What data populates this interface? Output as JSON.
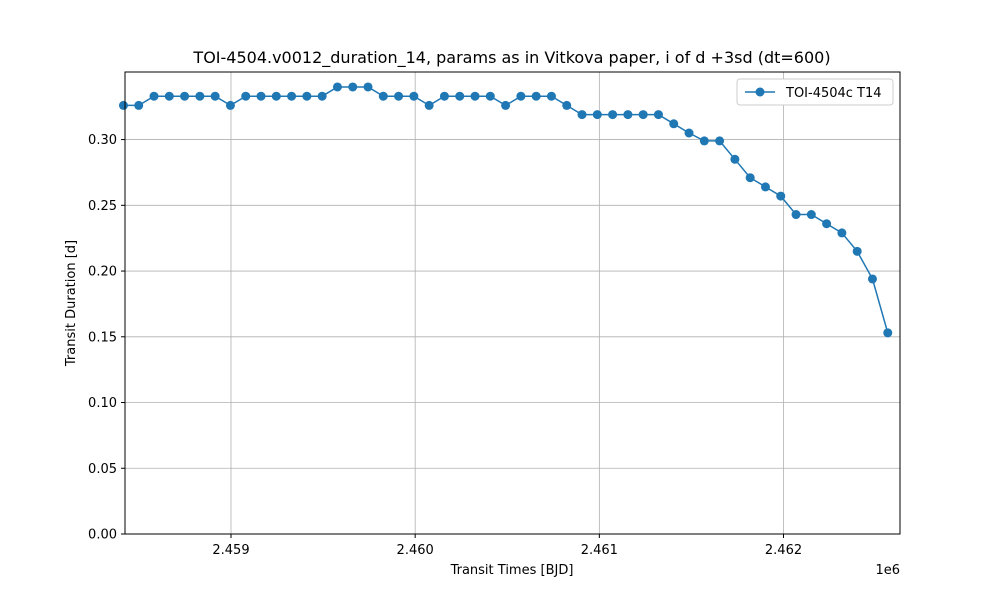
{
  "chart_data": {
    "type": "line",
    "title": "TOI-4504.v0012_duration_14, params as in Vitkova paper, i of d +3sd (dt=600)",
    "xlabel": "Transit Times [BJD]",
    "ylabel": "Transit Duration [d]",
    "x_offset_label": "1e6",
    "xlim": [
      2458424.5,
      2462632.5
    ],
    "ylim": [
      0.0,
      0.3514
    ],
    "xticks": [
      2459000,
      2460000,
      2461000,
      2462000
    ],
    "xtick_labels": [
      "2.459",
      "2.460",
      "2.461",
      "2.462"
    ],
    "yticks": [
      0.0,
      0.05,
      0.1,
      0.15,
      0.2,
      0.25,
      0.3
    ],
    "ytick_labels": [
      "0.00",
      "0.05",
      "0.10",
      "0.15",
      "0.20",
      "0.25",
      "0.30"
    ],
    "grid": true,
    "legend_position": "top-right",
    "colors": {
      "series": "#1f77b4",
      "grid": "#b0b0b0",
      "axes": "#000000"
    },
    "series": [
      {
        "name": "TOI-4504c T14",
        "marker": "circle",
        "x": [
          2458416,
          2458499,
          2458582,
          2458665,
          2458748,
          2458831,
          2458914,
          2458997,
          2459080,
          2459163,
          2459246,
          2459329,
          2459412,
          2459495,
          2459578,
          2459661,
          2459744,
          2459827,
          2459910,
          2459993,
          2460076,
          2460159,
          2460242,
          2460325,
          2460408,
          2460491,
          2460574,
          2460657,
          2460740,
          2460823,
          2460906,
          2460989,
          2461072,
          2461155,
          2461238,
          2461321,
          2461404,
          2461487,
          2461570,
          2461653,
          2461736,
          2461819,
          2461902,
          2461985,
          2462068,
          2462151,
          2462234,
          2462317,
          2462400,
          2462483,
          2462566
        ],
        "y": [
          0.326,
          0.326,
          0.333,
          0.333,
          0.333,
          0.333,
          0.333,
          0.326,
          0.333,
          0.333,
          0.333,
          0.333,
          0.333,
          0.333,
          0.34,
          0.34,
          0.34,
          0.333,
          0.333,
          0.333,
          0.326,
          0.333,
          0.333,
          0.333,
          0.333,
          0.326,
          0.333,
          0.333,
          0.333,
          0.326,
          0.319,
          0.319,
          0.319,
          0.319,
          0.319,
          0.319,
          0.312,
          0.305,
          0.299,
          0.299,
          0.285,
          0.271,
          0.264,
          0.257,
          0.243,
          0.243,
          0.236,
          0.229,
          0.215,
          0.194,
          0.153
        ]
      }
    ]
  }
}
